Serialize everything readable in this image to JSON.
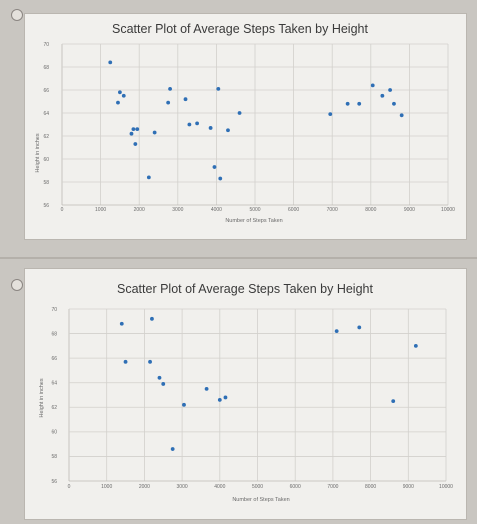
{
  "chart_data": [
    {
      "type": "scatter",
      "title": "Scatter Plot of Average Steps Taken by Height",
      "xlabel": "Number of Steps Taken",
      "ylabel": "Height in inches",
      "xlim": [
        0,
        10000
      ],
      "ylim": [
        56,
        70
      ],
      "xticks": [
        0,
        1000,
        2000,
        3000,
        4000,
        5000,
        6000,
        7000,
        8000,
        9000,
        10000
      ],
      "yticks": [
        56,
        58,
        60,
        62,
        64,
        66,
        68,
        70
      ],
      "grid": true,
      "series": [
        {
          "color": "#2f6fb5",
          "points": [
            [
              1250,
              68.4
            ],
            [
              1500,
              65.8
            ],
            [
              1450,
              64.9
            ],
            [
              1600,
              65.5
            ],
            [
              1850,
              62.6
            ],
            [
              1950,
              62.6
            ],
            [
              1800,
              62.2
            ],
            [
              1900,
              61.3
            ],
            [
              2400,
              62.3
            ],
            [
              2250,
              58.4
            ],
            [
              2800,
              66.1
            ],
            [
              2750,
              64.9
            ],
            [
              3200,
              65.2
            ],
            [
              3300,
              63.0
            ],
            [
              3500,
              63.1
            ],
            [
              3850,
              62.7
            ],
            [
              3950,
              59.3
            ],
            [
              4100,
              58.3
            ],
            [
              4050,
              66.1
            ],
            [
              4300,
              62.5
            ],
            [
              4600,
              64.0
            ],
            [
              6950,
              63.9
            ],
            [
              7400,
              64.8
            ],
            [
              7700,
              64.8
            ],
            [
              8050,
              66.4
            ],
            [
              8300,
              65.5
            ],
            [
              8500,
              66.0
            ],
            [
              8600,
              64.8
            ],
            [
              8800,
              63.8
            ]
          ]
        }
      ]
    },
    {
      "type": "scatter",
      "title": "Scatter Plot of Average Steps Taken by Height",
      "xlabel": "Number of Steps Taken",
      "ylabel": "Height in inches",
      "xlim": [
        0,
        10000
      ],
      "ylim": [
        56,
        70
      ],
      "xticks": [
        0,
        1000,
        2000,
        3000,
        4000,
        5000,
        6000,
        7000,
        8000,
        9000,
        10000
      ],
      "yticks": [
        56,
        58,
        60,
        62,
        64,
        66,
        68,
        70
      ],
      "grid": true,
      "series": [
        {
          "color": "#2f6fb5",
          "points": [
            [
              1400,
              68.8
            ],
            [
              1500,
              65.7
            ],
            [
              2150,
              65.7
            ],
            [
              2200,
              69.2
            ],
            [
              2400,
              64.4
            ],
            [
              2500,
              63.9
            ],
            [
              2750,
              58.6
            ],
            [
              3050,
              62.2
            ],
            [
              3650,
              63.5
            ],
            [
              4000,
              62.6
            ],
            [
              4150,
              62.8
            ],
            [
              7100,
              68.2
            ],
            [
              7700,
              68.5
            ],
            [
              8600,
              62.5
            ],
            [
              9200,
              67.0
            ]
          ]
        }
      ]
    }
  ]
}
